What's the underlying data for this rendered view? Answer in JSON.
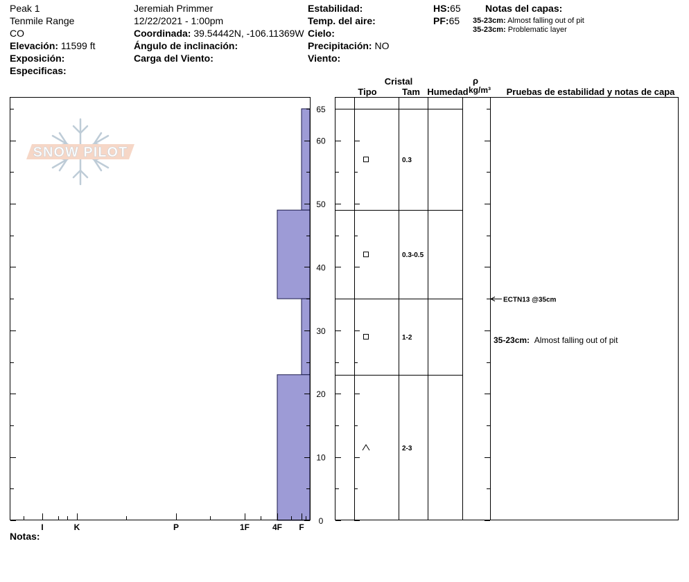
{
  "header": {
    "location": "Peak 1",
    "range": "Tenmile Range",
    "state": "CO",
    "elevation_label": "Elevación:",
    "elevation_value": "11599 ft",
    "aspect_label": "Exposición:",
    "specifics_label": "Especificas:",
    "observer": "Jeremiah Primmer",
    "datetime": "12/22/2021 - 1:00pm",
    "coord_label": "Coordinada:",
    "coord_value": "39.54442N, -106.11369W",
    "slope_label": "Ángulo de inclinación:",
    "wind_load_label": "Carga del Viento:",
    "stability_label": "Estabilidad:",
    "air_temp_label": "Temp. del aire:",
    "sky_label": "Cielo:",
    "precip_label": "Precipitación:",
    "precip_value": "NO",
    "wind_label": "Viento:",
    "hs_label": "HS:",
    "hs_value": "65",
    "pf_label": "PF:",
    "pf_value": "65",
    "layer_notes_title": "Notas del capas:",
    "layer_notes": [
      {
        "range": "35-23cm:",
        "text": "Almost falling out of pit"
      },
      {
        "range": "35-23cm:",
        "text": "Problematic layer"
      }
    ]
  },
  "logo_text": "SNOW PILOT",
  "columns": {
    "crystal": "Cristal",
    "type": "Tipo",
    "size": "Tam",
    "moisture": "Humedad",
    "rho": "ρ",
    "density_unit": "kg/m³",
    "tests_header": "Pruebas de estabilidad y notas de capa"
  },
  "notes_label": "Notas:",
  "test_result": "ECTN13 @35cm",
  "layer_comment": {
    "range": "35-23cm:",
    "text": "Almost falling out of pit"
  },
  "colors": {
    "hardness_fill": "#9d9bd6",
    "hardness_stroke": "#1a1a4a"
  },
  "chart_data": {
    "type": "bar",
    "orientation": "horizontal",
    "title": "",
    "y_axis": {
      "label": "",
      "min": 0,
      "max": 65,
      "ticks": [
        0,
        10,
        20,
        30,
        40,
        50,
        60,
        65
      ]
    },
    "x_axis": {
      "label": "",
      "categories": [
        "I",
        "K",
        "P",
        "1F",
        "4F",
        "F"
      ]
    },
    "layers": [
      {
        "top": 65,
        "bottom": 49,
        "hardness": "F",
        "grain_type": "square",
        "grain_size": "0.3"
      },
      {
        "top": 49,
        "bottom": 35,
        "hardness": "4F",
        "grain_type": "square",
        "grain_size": "0.3-0.5"
      },
      {
        "top": 35,
        "bottom": 23,
        "hardness": "F",
        "grain_type": "square",
        "grain_size": "1-2"
      },
      {
        "top": 23,
        "bottom": 0,
        "hardness": "4F",
        "grain_type": "caret",
        "grain_size": "2-3"
      }
    ],
    "tests": [
      {
        "depth": 35,
        "result": "ECTN13 @35cm"
      }
    ]
  }
}
